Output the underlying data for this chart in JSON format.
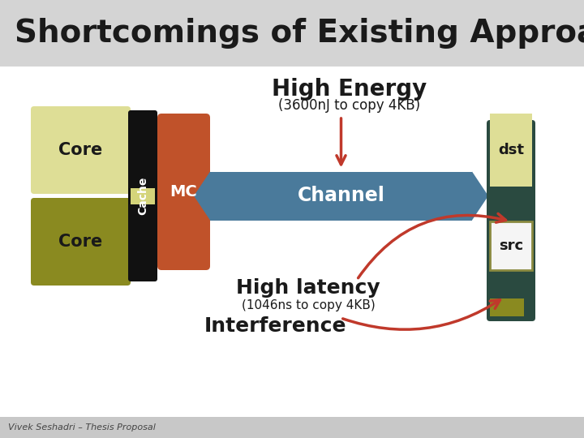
{
  "title": "Shortcomings of Existing Approach",
  "title_bg": "#d4d4d4",
  "title_fontsize": 28,
  "title_color": "#1a1a1a",
  "bg_color": "#ffffff",
  "footer_text": "Vivek Seshadri – Thesis Proposal",
  "footer_bg": "#c8c8c8",
  "core_top_color": "#dede96",
  "core_bot_color": "#8a8a20",
  "cache_color": "#111111",
  "cache_yellow": "#d4d47a",
  "mc_color": "#c0522a",
  "channel_color": "#4a7a9b",
  "dst_dark_color": "#2a4a40",
  "dst_light_color": "#dede96",
  "src_bg": "#f5f5f5",
  "src_border": "#8a8a40",
  "small_yellow": "#8a8a20",
  "arrow_color": "#c0392b",
  "channel_text": "Channel",
  "mc_text": "MC",
  "cache_text": "Cache",
  "core_text": "Core",
  "dst_text": "dst",
  "src_text": "src",
  "high_energy_text": "High Energy",
  "high_energy_sub": "(3600nJ to copy 4KB)",
  "high_latency_text": "High latency",
  "high_latency_sub": "(1046ns to copy 4KB)",
  "interference_text": "Interference"
}
